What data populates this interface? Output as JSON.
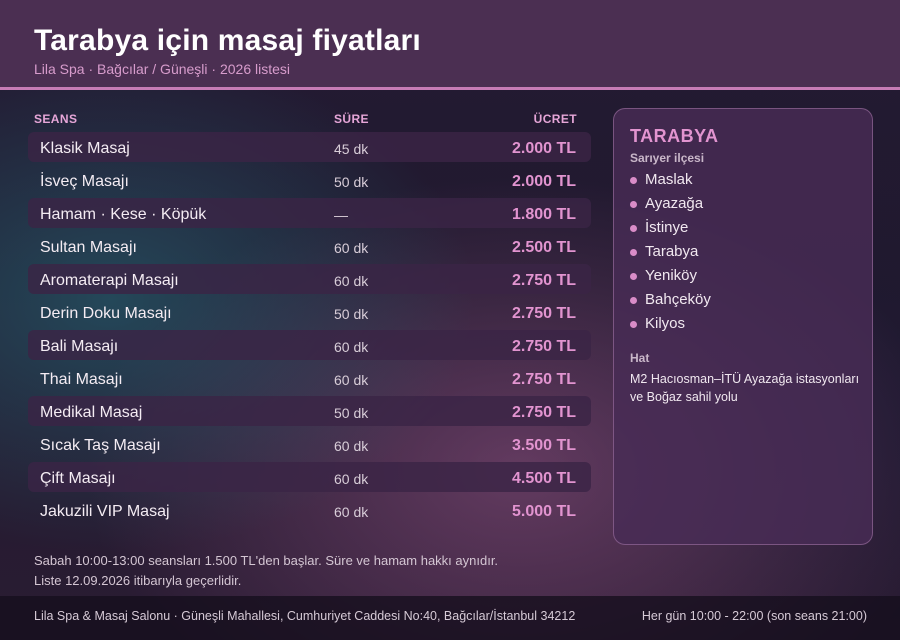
{
  "header": {
    "title": "Tarabya için masaj fiyatları",
    "subtitle": "Lila Spa · Bağcılar / Güneşli · 2026 listesi"
  },
  "table": {
    "columns": [
      "SEANS",
      "SÜRE",
      "ÜCRET"
    ],
    "rows": [
      {
        "name": "Klasik Masaj",
        "duration": "45 dk",
        "price": "2.000 TL"
      },
      {
        "name": "İsveç Masajı",
        "duration": "50 dk",
        "price": "2.000 TL"
      },
      {
        "name": "Hamam · Kese · Köpük",
        "duration": "—",
        "price": "1.800 TL"
      },
      {
        "name": "Sultan Masajı",
        "duration": "60 dk",
        "price": "2.500 TL"
      },
      {
        "name": "Aromaterapi Masajı",
        "duration": "60 dk",
        "price": "2.750 TL"
      },
      {
        "name": "Derin Doku Masajı",
        "duration": "50 dk",
        "price": "2.750 TL"
      },
      {
        "name": "Bali Masajı",
        "duration": "60 dk",
        "price": "2.750 TL"
      },
      {
        "name": "Thai Masajı",
        "duration": "60 dk",
        "price": "2.750 TL"
      },
      {
        "name": "Medikal Masaj",
        "duration": "50 dk",
        "price": "2.750 TL"
      },
      {
        "name": "Sıcak Taş Masajı",
        "duration": "60 dk",
        "price": "3.500 TL"
      },
      {
        "name": "Çift Masajı",
        "duration": "60 dk",
        "price": "4.500 TL"
      },
      {
        "name": "Jakuzili VIP Masaj",
        "duration": "60 dk",
        "price": "5.000 TL"
      }
    ]
  },
  "sidebar": {
    "district": "TARABYA",
    "county": "Sarıyer ilçesi",
    "neighborhoods": [
      "Maslak",
      "Ayazağa",
      "İstinye",
      "Tarabya",
      "Yeniköy",
      "Bahçeköy",
      "Kilyos"
    ],
    "line_heading": "Hat",
    "line_text": "M2 Hacıosman–İTÜ Ayazağa istasyonları ve Boğaz sahil yolu"
  },
  "notes": {
    "line1": "Sabah 10:00-13:00 seansları 1.500 TL'den başlar. Süre ve hamam hakkı aynıdır.",
    "line2": "Liste 12.09.2026 itibarıyla geçerlidir."
  },
  "footer": {
    "address": "Lila Spa & Masaj Salonu · Güneşli Mahallesi, Cumhuriyet Caddesi No:40, Bağcılar/İstanbul 34212",
    "hours": "Her gün 10:00 - 22:00 (son seans 21:00)"
  },
  "colors": {
    "accent": "#e294d0",
    "header_bg": "#4b2f52",
    "header_rule": "#c77cb6"
  }
}
